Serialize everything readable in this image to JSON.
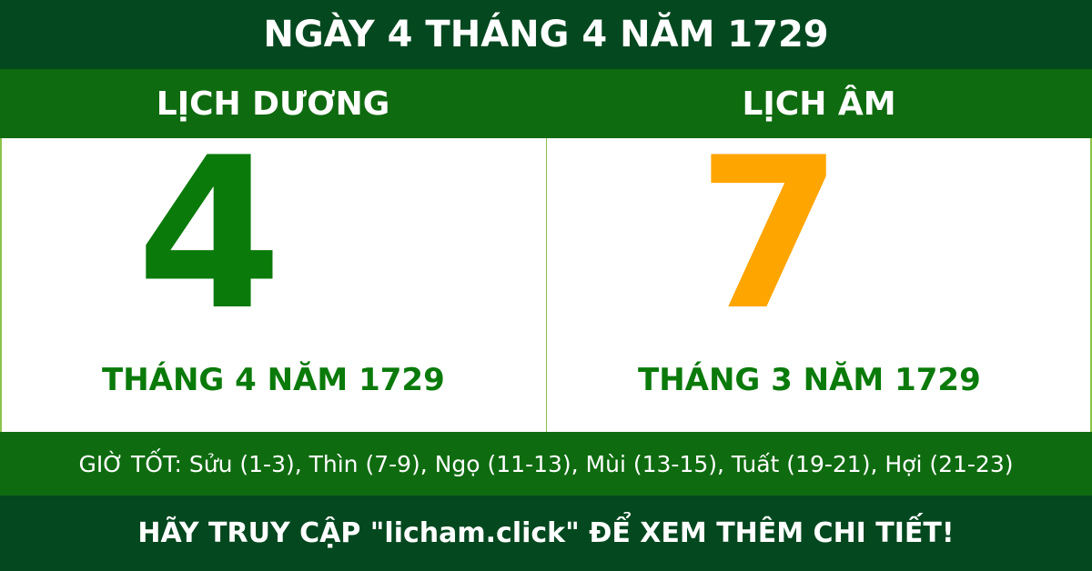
{
  "title": "NGÀY 4 THÁNG 4 NĂM 1729",
  "solar": {
    "heading": "LỊCH DƯƠNG",
    "day": "4",
    "month_year": "THÁNG 4 NĂM 1729"
  },
  "lunar": {
    "heading": "LỊCH ÂM",
    "day": "7",
    "month_year": "THÁNG 3 NĂM 1729"
  },
  "good_hours": "GIỜ TỐT: Sửu (1-3), Thìn (7-9), Ngọ (11-13), Mùi (13-15), Tuất (19-21), Hợi (21-23)",
  "footer": "HÃY TRUY CẬP \"licham.click\" ĐỂ XEM THÊM CHI TIẾT!",
  "colors": {
    "dark_green": "#03481f",
    "green": "#0f6b10",
    "solar_day": "#0a7a0a",
    "lunar_day": "#ffa500"
  }
}
